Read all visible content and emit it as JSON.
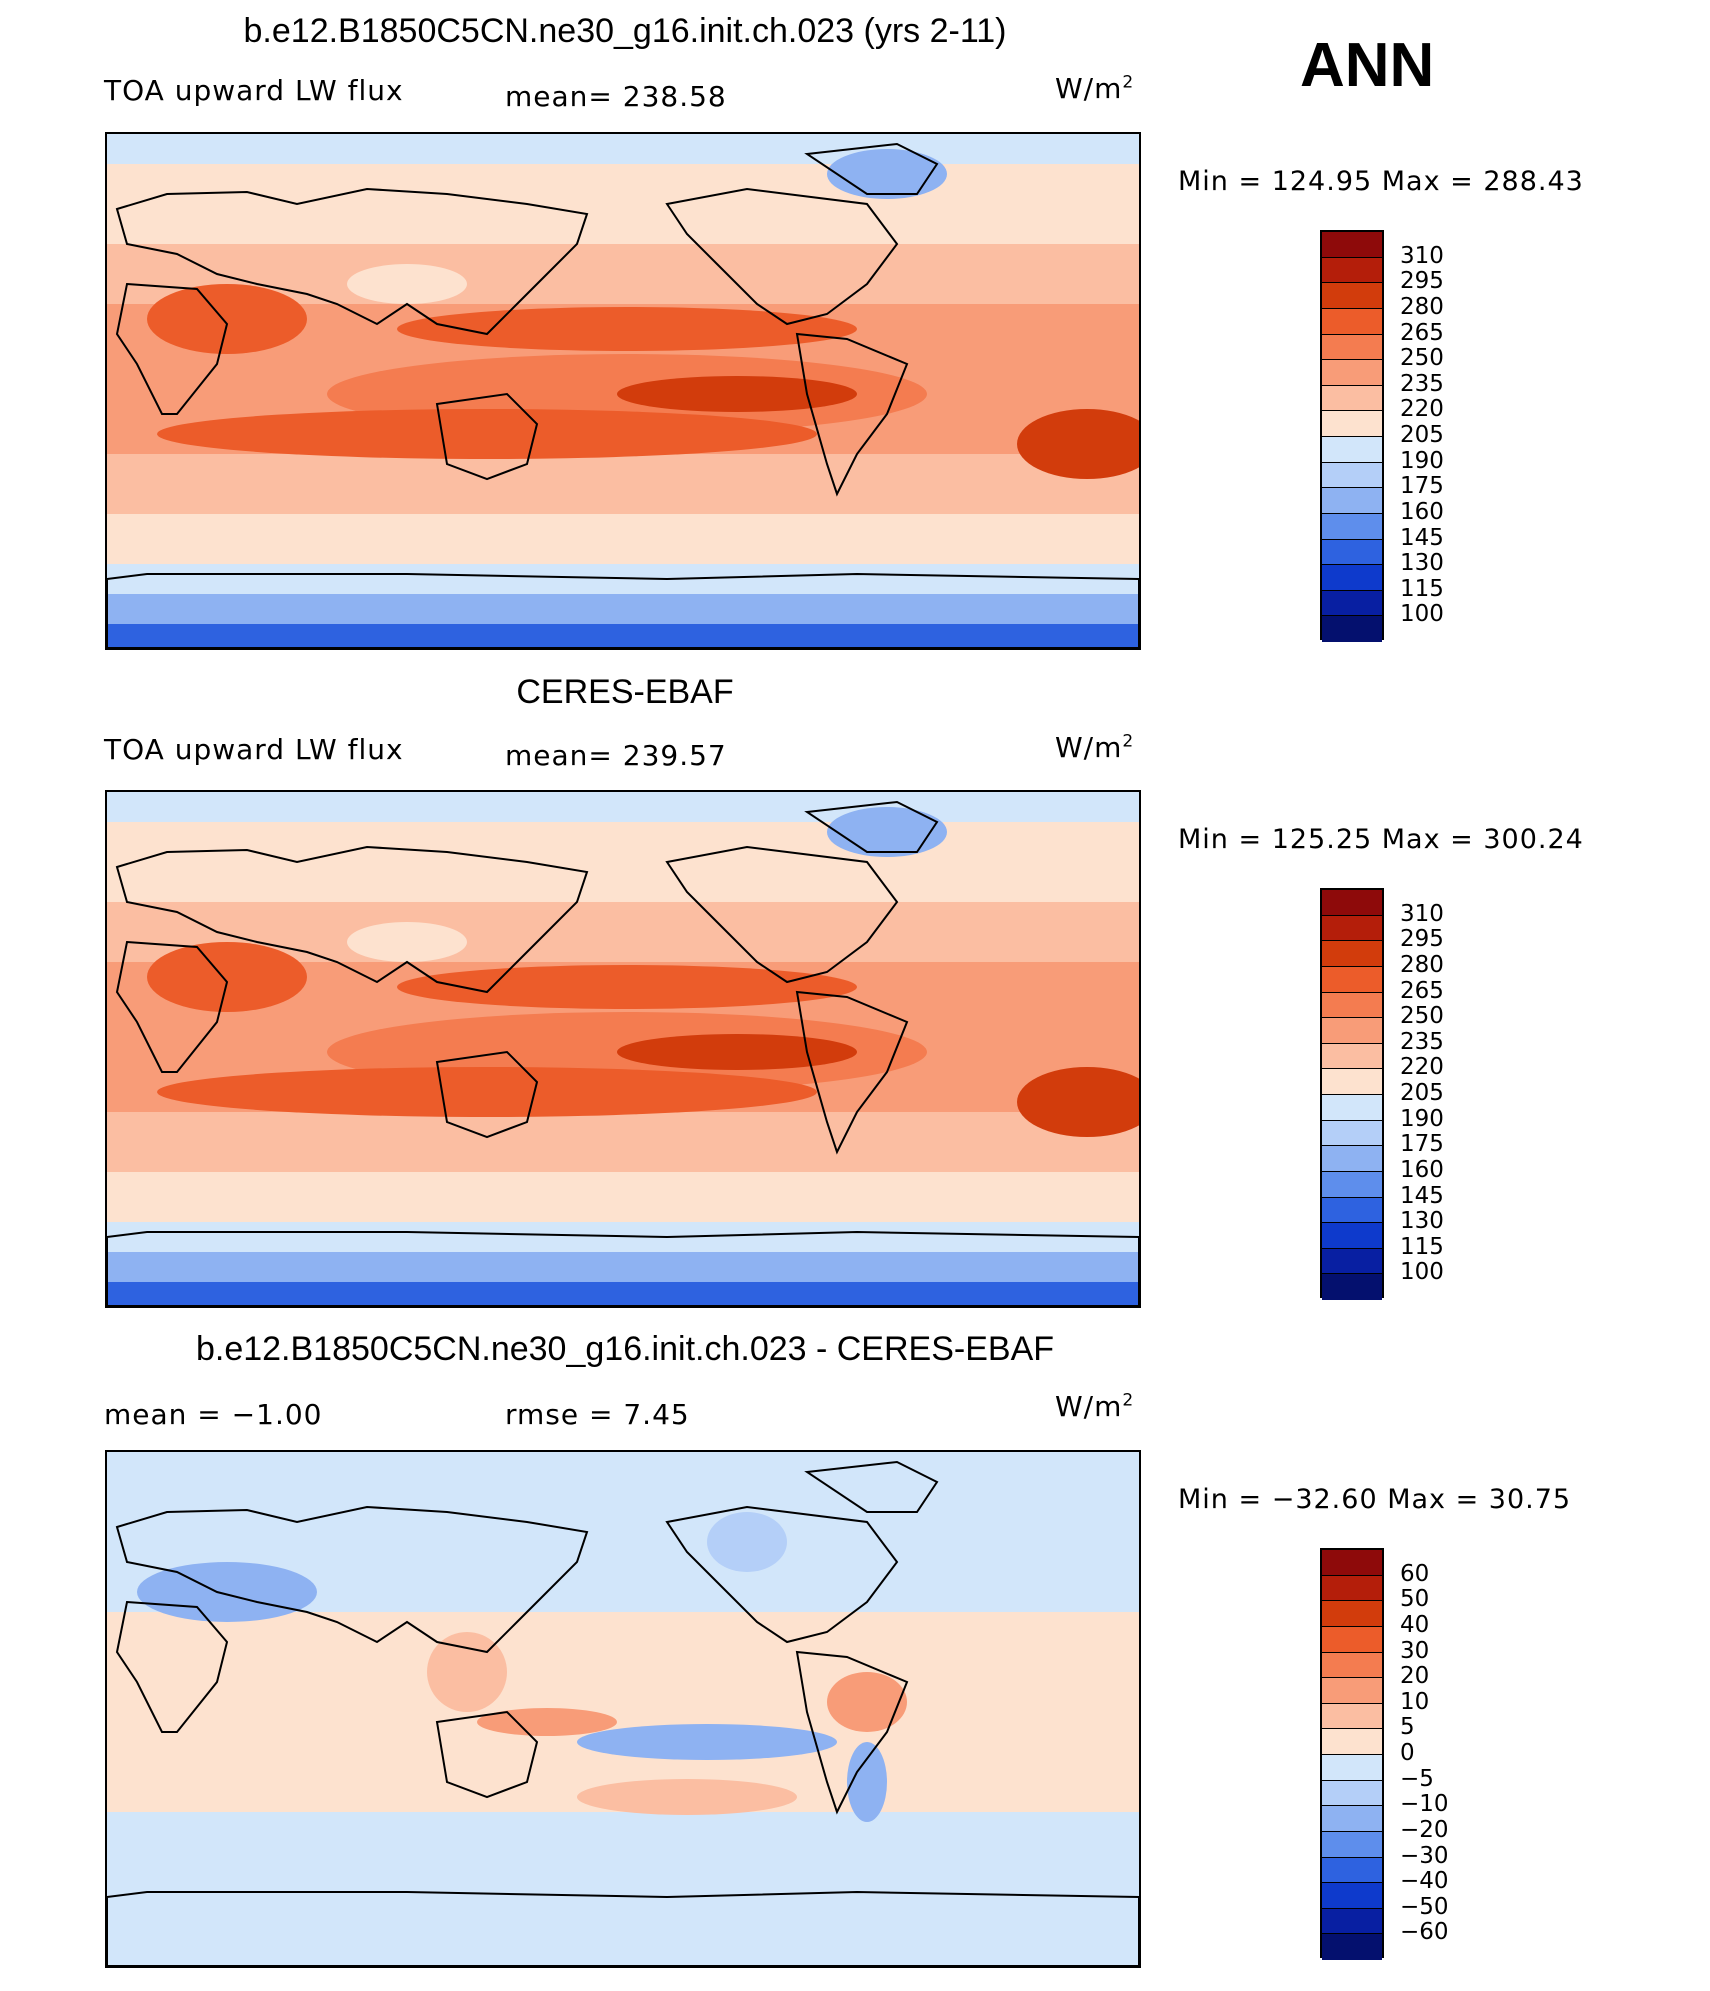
{
  "season": "ANN",
  "panels": [
    {
      "title": "b.e12.B1850C5CN.ne30_g16.init.ch.023 (yrs 2-11)",
      "variable": "TOA upward LW flux",
      "stat": "mean=  238.58",
      "units": "W/m",
      "units_sup": "2",
      "minmax": "Min  =  124.95  Max  =  288.43"
    },
    {
      "title": "CERES-EBAF",
      "variable": "TOA upward LW flux",
      "stat": "mean=  239.57",
      "units": "W/m",
      "units_sup": "2",
      "minmax": "Min  =  125.25  Max  =  300.24"
    },
    {
      "title": "b.e12.B1850C5CN.ne30_g16.init.ch.023 - CERES-EBAF",
      "stat_mean": "mean  =     −1.00",
      "stat_rmse": "rmse  =       7.45",
      "units": "W/m",
      "units_sup": "2",
      "minmax": "Min  =  −32.60  Max  =     30.75"
    }
  ],
  "colorbar_abs": {
    "labels": [
      "310",
      "295",
      "280",
      "265",
      "250",
      "235",
      "220",
      "205",
      "190",
      "175",
      "160",
      "145",
      "130",
      "115",
      "100"
    ],
    "colors": [
      "#8e0a0a",
      "#b41e0a",
      "#d23c0c",
      "#ec5c2a",
      "#f47c50",
      "#f89c78",
      "#fbbea2",
      "#fde2cf",
      "#d2e6fa",
      "#b4cff8",
      "#8eb2f2",
      "#5e8eec",
      "#2e62e0",
      "#0e3acc",
      "#081fa2",
      "#04106e"
    ]
  },
  "colorbar_diff": {
    "labels": [
      "60",
      "50",
      "40",
      "30",
      "20",
      "10",
      "5",
      "0",
      "−5",
      "−10",
      "−20",
      "−30",
      "−40",
      "−50",
      "−60"
    ],
    "colors": [
      "#8e0a0a",
      "#b41e0a",
      "#d23c0c",
      "#ec5c2a",
      "#f47c50",
      "#f89c78",
      "#fbbea2",
      "#fde2cf",
      "#d2e6fa",
      "#b4cff8",
      "#8eb2f2",
      "#5e8eec",
      "#2e62e0",
      "#0e3acc",
      "#081fa2",
      "#04106e"
    ]
  },
  "chart_data": [
    {
      "type": "heatmap",
      "title": "b.e12.B1850C5CN.ne30_g16.init.ch.023 (yrs 2-11)",
      "field": "TOA upward LW flux",
      "units": "W/m2",
      "mean": 238.58,
      "min": 124.95,
      "max": 288.43,
      "levels": [
        100,
        115,
        130,
        145,
        160,
        175,
        190,
        205,
        220,
        235,
        250,
        265,
        280,
        295,
        310
      ]
    },
    {
      "type": "heatmap",
      "title": "CERES-EBAF",
      "field": "TOA upward LW flux",
      "units": "W/m2",
      "mean": 239.57,
      "min": 125.25,
      "max": 300.24,
      "levels": [
        100,
        115,
        130,
        145,
        160,
        175,
        190,
        205,
        220,
        235,
        250,
        265,
        280,
        295,
        310
      ]
    },
    {
      "type": "heatmap",
      "title": "b.e12.B1850C5CN.ne30_g16.init.ch.023 - CERES-EBAF",
      "units": "W/m2",
      "mean": -1.0,
      "rmse": 7.45,
      "min": -32.6,
      "max": 30.75,
      "levels": [
        -60,
        -50,
        -40,
        -30,
        -20,
        -10,
        -5,
        0,
        5,
        10,
        20,
        30,
        40,
        50,
        60
      ]
    }
  ]
}
